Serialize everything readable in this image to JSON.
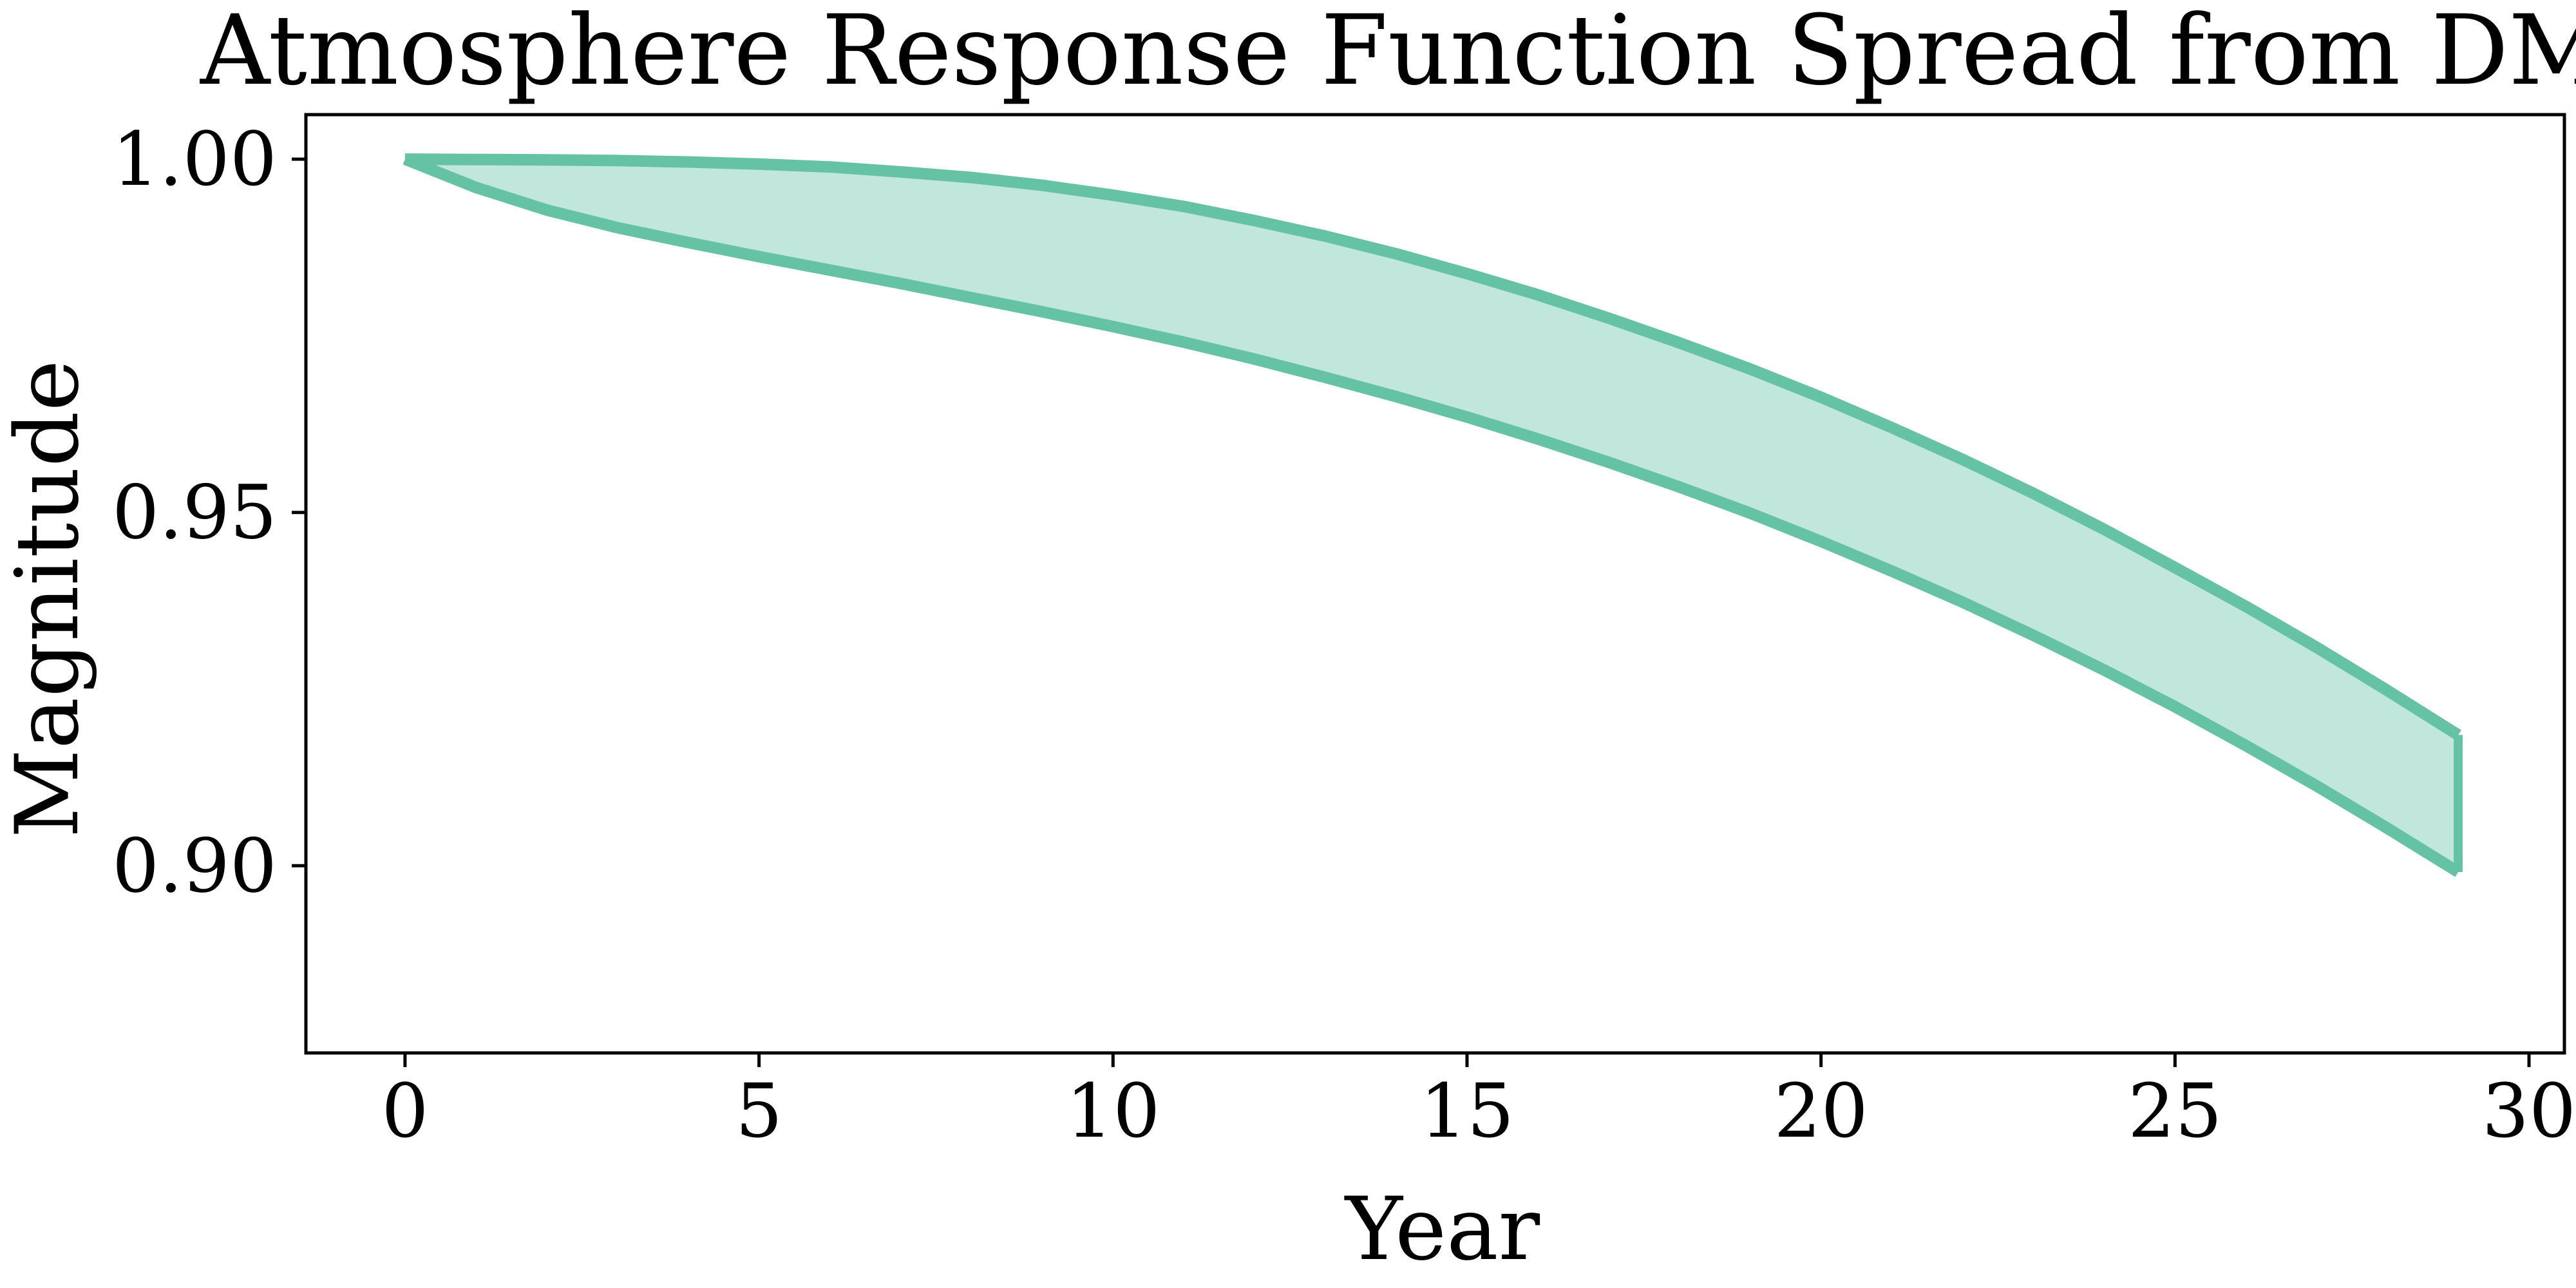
{
  "chart_data": {
    "type": "area",
    "title": "Atmosphere Response Function Spread from DMD",
    "xlabel": "Year",
    "ylabel": "Magnitude",
    "xlim": [
      -1.4,
      30.5
    ],
    "ylim": [
      0.8735,
      1.0063
    ],
    "grid": false,
    "x_ticks": [
      0,
      5,
      10,
      15,
      20,
      25,
      30
    ],
    "x_tick_labels": [
      "0",
      "5",
      "10",
      "15",
      "20",
      "25",
      "30"
    ],
    "y_ticks": [
      0.9,
      0.95,
      1.0
    ],
    "y_tick_labels": [
      "0.90",
      "0.95",
      "1.00"
    ],
    "colors": {
      "line": "#66c2a5",
      "fill": "#c1e7dc",
      "axis": "#000000"
    },
    "x": [
      0,
      1,
      2,
      3,
      4,
      5,
      6,
      7,
      8,
      9,
      10,
      11,
      12,
      13,
      14,
      15,
      16,
      17,
      18,
      19,
      20,
      21,
      22,
      23,
      24,
      25,
      26,
      27,
      28,
      29
    ],
    "series": [
      {
        "values": [
          1.0,
          0.99995,
          0.9999,
          0.9998,
          0.9996,
          0.9993,
          0.9989,
          0.9982,
          0.9974,
          0.9963,
          0.9949,
          0.9933,
          0.9913,
          0.9891,
          0.9866,
          0.9838,
          0.9808,
          0.9775,
          0.974,
          0.9703,
          0.9663,
          0.962,
          0.9575,
          0.9527,
          0.9476,
          0.9422,
          0.9367,
          0.9309,
          0.9248,
          0.9185
        ]
      },
      {
        "values": [
          1.0,
          0.996,
          0.9928,
          0.9903,
          0.9882,
          0.9862,
          0.9843,
          0.9824,
          0.9804,
          0.9784,
          0.9763,
          0.9741,
          0.9717,
          0.9691,
          0.9664,
          0.9635,
          0.9604,
          0.9571,
          0.9536,
          0.9499,
          0.9459,
          0.9417,
          0.9373,
          0.9326,
          0.9277,
          0.9225,
          0.917,
          0.9113,
          0.9053,
          0.8991
        ]
      }
    ]
  }
}
